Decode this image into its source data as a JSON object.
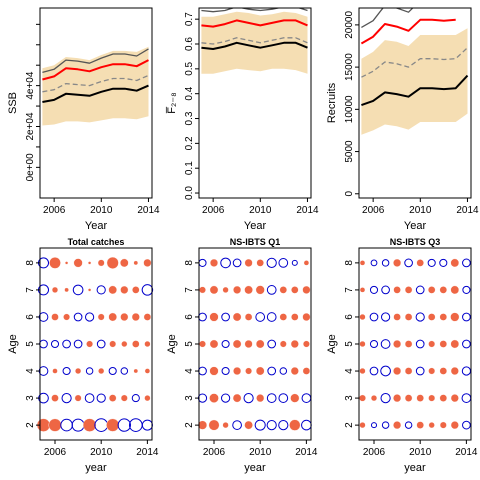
{
  "chart_data": [
    {
      "type": "line",
      "xlabel": "Year",
      "ylabel": "SSB",
      "xlim": [
        2004.8,
        2014.3
      ],
      "ylim": [
        -15000,
        78000
      ],
      "xticks": [
        2006,
        2010,
        2014
      ],
      "yticks": [
        0,
        20000,
        40000
      ],
      "ytick_labels": [
        "0e+00",
        "2e+04",
        "4e+04"
      ],
      "minor_yticks": [
        10000,
        30000,
        50000,
        60000,
        70000
      ],
      "x": [
        2005,
        2006,
        2007,
        2008,
        2009,
        2010,
        2011,
        2012,
        2013,
        2014
      ],
      "band_lower": [
        20500,
        21000,
        22500,
        22500,
        22000,
        23000,
        24000,
        24000,
        23500,
        25000
      ],
      "band_upper": [
        48500,
        50000,
        54000,
        53500,
        52500,
        55000,
        57000,
        57000,
        56500,
        59000
      ],
      "series": [
        {
          "role": "estimate",
          "color": "#000000",
          "values": [
            32000,
            33000,
            36000,
            35500,
            35000,
            37000,
            38500,
            38500,
            37500,
            40000
          ]
        },
        {
          "role": "red",
          "color": "#ff0000",
          "values": [
            43000,
            44500,
            48500,
            48000,
            47000,
            49000,
            50500,
            50500,
            49500,
            52500
          ]
        },
        {
          "role": "dark-grey",
          "color": "#555555",
          "values": [
            46500,
            48000,
            52500,
            52000,
            51000,
            53500,
            55500,
            55500,
            54500,
            58000
          ]
        },
        {
          "role": "grey-dashed",
          "color": "#888888",
          "values": [
            37000,
            38000,
            41000,
            40500,
            40000,
            42000,
            43500,
            43500,
            42500,
            45000
          ]
        }
      ]
    },
    {
      "type": "line",
      "xlabel": "Year",
      "ylabel": "F̅₂₋₈",
      "xlim": [
        2004.8,
        2014.3
      ],
      "ylim": [
        -0.02,
        0.745
      ],
      "xticks": [
        2006,
        2010,
        2014
      ],
      "yticks": [
        0.0,
        0.1,
        0.2,
        0.3,
        0.4,
        0.5,
        0.6,
        0.7
      ],
      "ytick_labels": [
        "0.0",
        "0.1",
        "0.2",
        "0.3",
        "0.4",
        "0.5",
        "0.6",
        "0.7"
      ],
      "x": [
        2005,
        2006,
        2007,
        2008,
        2009,
        2010,
        2011,
        2012,
        2013,
        2014
      ],
      "band_lower": [
        0.48,
        0.48,
        0.49,
        0.5,
        0.495,
        0.49,
        0.5,
        0.5,
        0.495,
        0.48
      ],
      "band_upper": [
        0.71,
        0.71,
        0.72,
        0.73,
        0.725,
        0.715,
        0.72,
        0.73,
        0.725,
        0.71
      ],
      "series": [
        {
          "role": "estimate",
          "color": "#000000",
          "values": [
            0.585,
            0.58,
            0.59,
            0.605,
            0.595,
            0.585,
            0.595,
            0.605,
            0.605,
            0.585
          ]
        },
        {
          "role": "red",
          "color": "#ff0000",
          "values": [
            0.675,
            0.67,
            0.68,
            0.695,
            0.685,
            0.675,
            0.685,
            0.695,
            0.695,
            0.675
          ]
        },
        {
          "role": "dark-grey",
          "color": "#555555",
          "values": [
            0.735,
            0.73,
            0.735,
            0.75,
            0.74,
            0.735,
            0.74,
            0.75,
            0.75,
            0.735
          ]
        },
        {
          "role": "grey-dashed",
          "color": "#888888",
          "values": [
            0.605,
            0.6,
            0.61,
            0.625,
            0.615,
            0.605,
            0.615,
            0.625,
            0.625,
            0.605
          ]
        }
      ]
    },
    {
      "type": "line",
      "xlabel": "Year",
      "ylabel": "Recruits",
      "xlim": [
        2004.8,
        2014.3
      ],
      "ylim": [
        -500,
        22000
      ],
      "xticks": [
        2006,
        2010,
        2014
      ],
      "yticks": [
        0,
        5000,
        10000,
        15000,
        20000
      ],
      "ytick_labels": [
        "0",
        "5000",
        "10000",
        "15000",
        "20000"
      ],
      "x": [
        2005,
        2006,
        2007,
        2008,
        2009,
        2010,
        2011,
        2012,
        2013,
        2014
      ],
      "band_lower": [
        7000,
        7500,
        8200,
        8000,
        7600,
        8500,
        8500,
        8500,
        8500,
        9500
      ],
      "band_upper": [
        16000,
        16800,
        18200,
        18000,
        17500,
        18800,
        18800,
        18800,
        18800,
        19600
      ],
      "series": [
        {
          "role": "estimate",
          "color": "#000000",
          "values": [
            10500,
            11000,
            12000,
            11800,
            11500,
            12500,
            12500,
            12400,
            12500,
            14000
          ]
        },
        {
          "role": "red",
          "color": "#ff0000",
          "values": [
            17800,
            18600,
            20100,
            19800,
            19300,
            20600,
            20600,
            20500,
            20600,
            null
          ]
        },
        {
          "role": "dark-grey",
          "color": "#555555",
          "values": [
            19700,
            20500,
            22300,
            22000,
            21500,
            22900,
            22900,
            22800,
            22900,
            24500
          ]
        },
        {
          "role": "grey-dashed",
          "color": "#888888",
          "values": [
            13800,
            14500,
            15600,
            15400,
            15000,
            16000,
            16000,
            15900,
            16000,
            17300
          ]
        }
      ]
    },
    {
      "type": "scatter",
      "subtype": "bubble",
      "title": "Total catches",
      "xlabel": "year",
      "ylabel": "Age",
      "xlim": [
        2004.7,
        2014.4
      ],
      "ylim": [
        1.45,
        8.55
      ],
      "xticks": [
        2006,
        2010,
        2014
      ],
      "yticks": [
        2,
        3,
        4,
        5,
        6,
        7,
        8
      ],
      "positive_color": "#ee6644",
      "negative_color": "#0000cc",
      "years": [
        2005,
        2006,
        2007,
        2008,
        2009,
        2010,
        2011,
        2012,
        2013,
        2014
      ],
      "ages": [
        2,
        3,
        4,
        5,
        6,
        7,
        8
      ],
      "residuals": [
        [
          1.0,
          0.95,
          -0.8,
          -0.85,
          1.0,
          -0.95,
          0.95,
          -0.9,
          -0.95,
          -0.6
        ],
        [
          -0.55,
          0.3,
          -0.5,
          0.25,
          -0.45,
          -0.4,
          0.3,
          0.25,
          -0.3,
          0.2
        ],
        [
          -0.45,
          0.15,
          -0.3,
          0.2,
          -0.25,
          0.2,
          -0.3,
          -0.25,
          0.1,
          0.15
        ],
        [
          -0.35,
          -0.3,
          -0.35,
          -0.35,
          0.25,
          -0.35,
          0.25,
          0.2,
          0.3,
          0.2
        ],
        [
          -0.45,
          0.3,
          0.25,
          -0.35,
          -0.4,
          0.25,
          0.4,
          0.35,
          0.35,
          0.3
        ],
        [
          -0.6,
          0.2,
          0.1,
          -0.55,
          0.05,
          -0.4,
          0.4,
          0.35,
          0.3,
          -0.65
        ],
        [
          -0.6,
          0.75,
          0.05,
          0.45,
          0.05,
          0.25,
          0.8,
          0.4,
          0.1,
          0.35
        ]
      ]
    },
    {
      "type": "scatter",
      "subtype": "bubble",
      "title": "NS-IBTS Q1",
      "xlabel": "year",
      "ylabel": "Age",
      "xlim": [
        2004.7,
        2014.4
      ],
      "ylim": [
        1.45,
        8.55
      ],
      "xticks": [
        2006,
        2010,
        2014
      ],
      "yticks": [
        2,
        3,
        4,
        5,
        6,
        7,
        8
      ],
      "positive_color": "#ee6644",
      "negative_color": "#0000cc",
      "years": [
        2005,
        2006,
        2007,
        2008,
        2009,
        2010,
        2011,
        2012,
        2013,
        2014
      ],
      "ages": [
        2,
        3,
        4,
        5,
        6,
        7,
        8
      ],
      "residuals": [
        [
          0.45,
          0.65,
          0.2,
          -0.45,
          0.4,
          -0.6,
          -0.5,
          -0.5,
          0.7,
          -0.55
        ],
        [
          -0.4,
          0.5,
          -0.4,
          0.4,
          -0.5,
          0.35,
          -0.45,
          -0.45,
          0.45,
          -0.45
        ],
        [
          -0.35,
          0.45,
          -0.3,
          0.35,
          0.25,
          0.4,
          -0.35,
          -0.25,
          0.35,
          0.3
        ],
        [
          0.25,
          0.4,
          -0.3,
          0.4,
          0.35,
          0.4,
          -0.35,
          0.25,
          0.35,
          0.25
        ],
        [
          -0.35,
          0.45,
          -0.35,
          0.4,
          0.3,
          -0.45,
          -0.45,
          0.3,
          0.3,
          0.35
        ],
        [
          0.25,
          0.4,
          0.2,
          0.35,
          0.4,
          0.45,
          -0.45,
          0.3,
          0.3,
          0.35
        ],
        [
          -0.3,
          0.35,
          -0.55,
          -0.35,
          0.35,
          0.3,
          -0.5,
          -0.45,
          -0.15,
          0.15
        ]
      ]
    },
    {
      "type": "scatter",
      "subtype": "bubble",
      "title": "NS-IBTS Q3",
      "xlabel": "year",
      "ylabel": "Age",
      "xlim": [
        2004.7,
        2014.4
      ],
      "ylim": [
        1.45,
        8.55
      ],
      "xticks": [
        2006,
        2010,
        2014
      ],
      "yticks": [
        2,
        3,
        4,
        5,
        6,
        7,
        8
      ],
      "positive_color": "#ee6644",
      "negative_color": "#0000cc",
      "years": [
        2005,
        2006,
        2007,
        2008,
        2009,
        2010,
        2011,
        2012,
        2013,
        2014
      ],
      "ages": [
        2,
        3,
        4,
        5,
        6,
        7,
        8
      ],
      "residuals": [
        [
          0.2,
          -0.15,
          -0.25,
          0.35,
          -0.25,
          0.3,
          0.2,
          0.25,
          0.35,
          -0.35
        ],
        [
          0.25,
          0.2,
          -0.5,
          0.35,
          0.3,
          0.3,
          0.25,
          0.3,
          0.35,
          -0.45
        ],
        [
          0.2,
          -0.35,
          -0.55,
          0.35,
          0.3,
          -0.35,
          0.25,
          0.3,
          0.35,
          -0.4
        ],
        [
          0.2,
          -0.3,
          -0.45,
          0.35,
          0.3,
          -0.35,
          0.25,
          0.3,
          0.4,
          -0.35
        ],
        [
          0.2,
          -0.35,
          -0.4,
          0.3,
          0.3,
          -0.4,
          0.3,
          0.3,
          0.45,
          -0.35
        ],
        [
          0.15,
          -0.3,
          -0.35,
          0.3,
          0.3,
          -0.35,
          0.3,
          0.3,
          0.4,
          -0.3
        ],
        [
          0.15,
          -0.2,
          -0.25,
          0.35,
          -0.35,
          0.3,
          -0.3,
          -0.3,
          0.4,
          -0.35
        ]
      ]
    }
  ]
}
